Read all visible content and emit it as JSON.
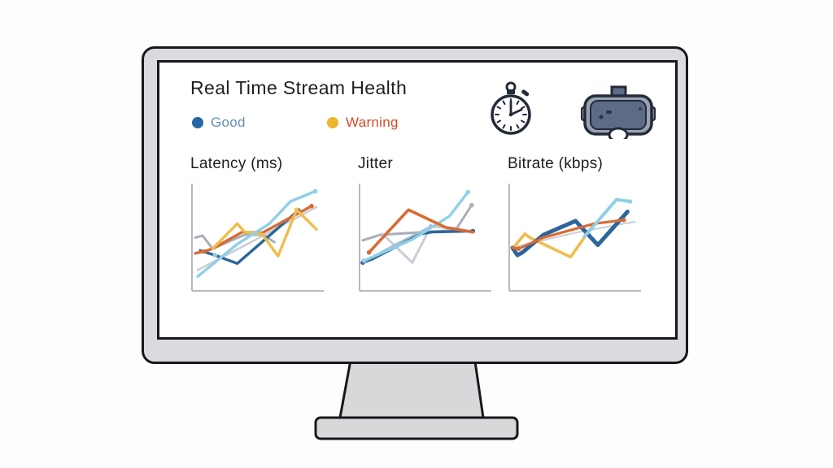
{
  "colors": {
    "page_bg": "#fdfdfe",
    "outline": "#17181c",
    "bezel": "#d9dbdf",
    "stand": "#d6d8da",
    "screen_bg": "#ffffff",
    "title_text": "#1f1f1f",
    "chart_title_text": "#1c1c1c",
    "icon_outline": "#242a38",
    "vr_shell": "#99a2b4",
    "vr_panel": "#5e6b86",
    "vr_dark": "#2c3343"
  },
  "palette": {
    "axis": "#b7b9bd",
    "navy": "#2d659c",
    "cyan": "#8fd0e5",
    "orange": "#da6a33",
    "yellow": "#f0bd4a",
    "gray": "#a9aeb8",
    "lightgray": "#c9cdd5",
    "periwinkle": "#a9bdd8"
  },
  "screen": {
    "title": "Real Time Stream Health",
    "legend": [
      {
        "label": "Good",
        "dot_color": "#2465a6",
        "text_color": "#6090bd"
      },
      {
        "label": "Warning",
        "dot_color": "#f0b32e",
        "text_color": "#d6492c"
      }
    ],
    "icons": [
      "stopwatch-icon",
      "vr-headset-icon"
    ]
  },
  "chart_data": [
    {
      "type": "line",
      "title": "Latency (ms)",
      "xlabel": "",
      "ylabel": "",
      "x_range": [
        0,
        100
      ],
      "ylim": [
        0,
        100
      ],
      "axes": "left-and-bottom, no tick labels",
      "grid": false,
      "legend_position": "shared top legend (Good / Warning)",
      "series": [
        {
          "name": "trace-lightgray",
          "color": "lightgray",
          "width": 2.5,
          "points": [
            [
              2,
              12
            ],
            [
              45,
              42
            ],
            [
              98,
              80
            ]
          ]
        },
        {
          "name": "trace-gray",
          "color": "gray",
          "width": 3,
          "points": [
            [
              0,
              47
            ],
            [
              6,
              49
            ],
            [
              14,
              35
            ],
            [
              40,
              50
            ],
            [
              55,
              50
            ],
            [
              64,
              42
            ]
          ]
        },
        {
          "name": "trace-good",
          "color": "navy",
          "width": 3.4,
          "marker_color": "cyan",
          "points": [
            [
              4,
              33
            ],
            [
              16,
              28
            ],
            [
              34,
              19
            ],
            [
              84,
              77
            ]
          ],
          "markers": [
            1
          ]
        },
        {
          "name": "trace-orange",
          "color": "orange",
          "width": 3.4,
          "points": [
            [
              0,
              30
            ],
            [
              7,
              32
            ],
            [
              14,
              35
            ],
            [
              38,
              53
            ],
            [
              54,
              52
            ],
            [
              94,
              81
            ]
          ],
          "markers": [
            1,
            5
          ]
        },
        {
          "name": "trace-warning",
          "color": "yellow",
          "width": 3.4,
          "points": [
            [
              14,
              35
            ],
            [
              34,
              62
            ],
            [
              40,
              53
            ],
            [
              54,
              51
            ],
            [
              67,
              27
            ],
            [
              82,
              77
            ],
            [
              98,
              56
            ]
          ],
          "markers": [
            5
          ]
        },
        {
          "name": "trace-cyan",
          "color": "cyan",
          "width": 3.4,
          "points": [
            [
              2,
              5
            ],
            [
              34,
              40
            ],
            [
              60,
              62
            ],
            [
              77,
              86
            ],
            [
              97,
              97
            ]
          ],
          "markers": [
            4
          ]
        }
      ]
    },
    {
      "type": "line",
      "title": "Jitter",
      "xlabel": "",
      "ylabel": "",
      "x_range": [
        0,
        100
      ],
      "ylim": [
        0,
        100
      ],
      "axes": "left-and-bottom, no tick labels",
      "grid": false,
      "legend_position": "shared top legend (Good / Warning)",
      "series": [
        {
          "name": "trace-gray",
          "color": "gray",
          "width": 3,
          "points": [
            [
              0,
              44
            ],
            [
              14,
              50
            ],
            [
              75,
              55
            ],
            [
              88,
              82
            ]
          ],
          "markers": [
            3
          ]
        },
        {
          "name": "trace-lightgray",
          "color": "lightgray",
          "width": 3,
          "points": [
            [
              16,
              51
            ],
            [
              40,
              20
            ],
            [
              55,
              59
            ],
            [
              75,
              57
            ]
          ]
        },
        {
          "name": "trace-periwinkle",
          "color": "periwinkle",
          "width": 2.5,
          "points": [
            [
              2,
              22
            ],
            [
              30,
              42
            ],
            [
              55,
              59
            ]
          ],
          "markers": [
            2
          ]
        },
        {
          "name": "trace-good",
          "color": "navy",
          "width": 3.4,
          "points": [
            [
              0,
              20
            ],
            [
              8,
              24
            ],
            [
              47,
              51
            ],
            [
              56,
              53
            ],
            [
              89,
              54
            ]
          ],
          "markers": [
            0,
            4
          ]
        },
        {
          "name": "trace-cyan",
          "color": "cyan",
          "width": 3.4,
          "points": [
            [
              1,
              22
            ],
            [
              40,
              45
            ],
            [
              70,
              70
            ],
            [
              85,
              96
            ]
          ],
          "markers": [
            0,
            3
          ]
        },
        {
          "name": "trace-orange",
          "color": "orange",
          "width": 3.6,
          "points": [
            [
              5,
              31
            ],
            [
              37,
              77
            ],
            [
              67,
              58
            ],
            [
              89,
              53
            ]
          ],
          "markers": [
            0
          ]
        }
      ]
    },
    {
      "type": "line",
      "title": "Bitrate (kbps)",
      "xlabel": "",
      "ylabel": "",
      "x_range": [
        0,
        100
      ],
      "ylim": [
        0,
        100
      ],
      "axes": "left-and-bottom, no tick labels",
      "grid": false,
      "legend_position": "shared top legend (Good / Warning)",
      "series": [
        {
          "name": "trace-lightgray",
          "color": "lightgray",
          "width": 2,
          "points": [
            [
              2,
              37
            ],
            [
              50,
              52
            ],
            [
              90,
              62
            ],
            [
              99,
              64
            ]
          ]
        },
        {
          "name": "trace-warning",
          "color": "yellow",
          "width": 3.6,
          "points": [
            [
              0,
              35
            ],
            [
              10,
              51
            ],
            [
              14,
              47
            ],
            [
              47,
              26
            ],
            [
              66,
              62
            ]
          ]
        },
        {
          "name": "trace-good",
          "color": "navy",
          "width": 5,
          "points": [
            [
              0,
              36
            ],
            [
              4,
              28
            ],
            [
              8,
              31
            ],
            [
              25,
              50
            ],
            [
              51,
              65
            ],
            [
              69,
              39
            ],
            [
              93,
              75
            ]
          ]
        },
        {
          "name": "trace-orange",
          "color": "orange",
          "width": 3.2,
          "points": [
            [
              0,
              36
            ],
            [
              5,
              35
            ],
            [
              25,
              47
            ],
            [
              66,
              62
            ],
            [
              90,
              66
            ]
          ],
          "markers": [
            1,
            4
          ]
        },
        {
          "name": "trace-cyan",
          "color": "cyan",
          "width": 4,
          "points": [
            [
              58,
              48
            ],
            [
              66,
              60
            ],
            [
              84,
              88
            ],
            [
              95,
              86
            ]
          ],
          "markers": [
            3
          ]
        }
      ]
    }
  ]
}
